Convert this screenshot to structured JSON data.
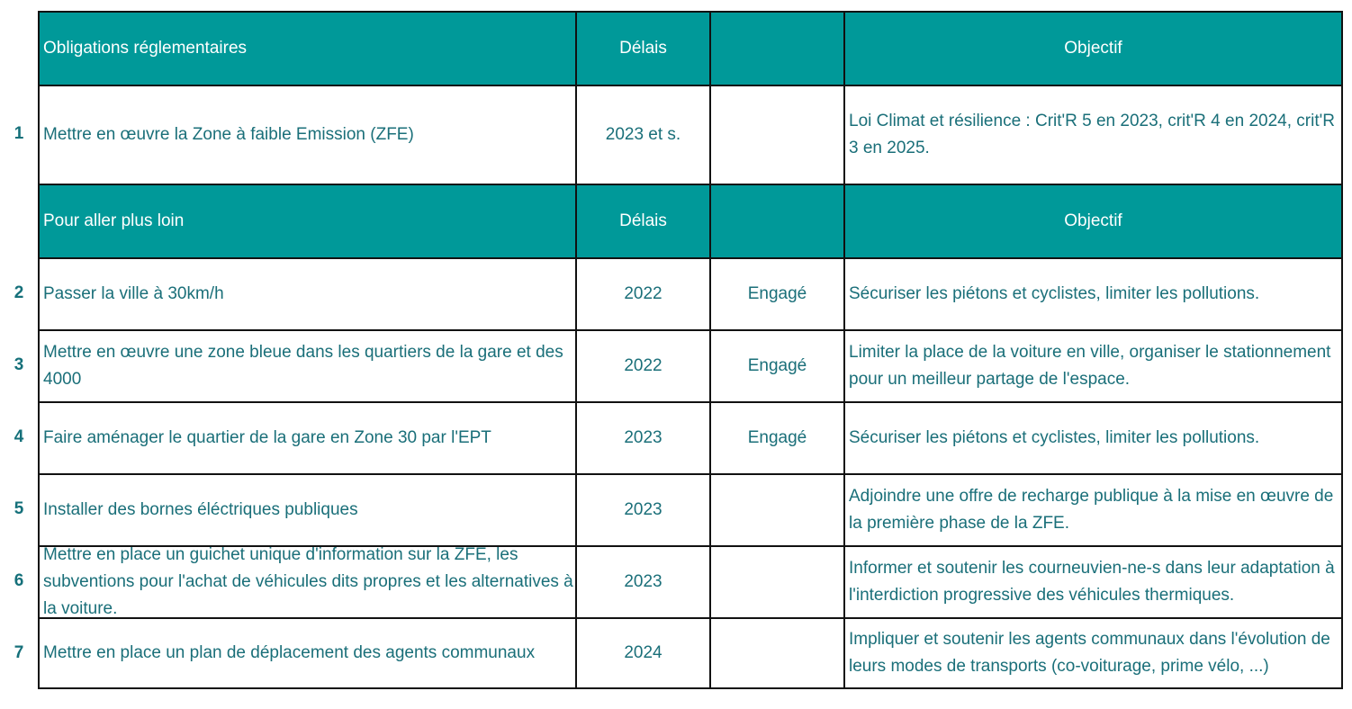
{
  "header1": {
    "title": "Obligations réglementaires",
    "delais": "Délais",
    "status": "",
    "objectif": "Objectif"
  },
  "header2": {
    "title": "Pour aller plus loin",
    "delais": "Délais",
    "status": "",
    "objectif": "Objectif"
  },
  "rows": [
    {
      "num": "1",
      "action": "Mettre en œuvre la Zone à faible Emission (ZFE)",
      "delai": "2023 et s.",
      "status": "",
      "objectif": "Loi Climat et résilience : Crit'R 5 en 2023, crit'R 4 en 2024, crit'R 3 en 2025."
    },
    {
      "num": "2",
      "action": "Passer la ville à 30km/h",
      "delai": "2022",
      "status": "Engagé",
      "objectif": "Sécuriser les piétons et cyclistes, limiter les pollutions."
    },
    {
      "num": "3",
      "action": "Mettre en œuvre une zone bleue dans les quartiers de la gare et des 4000",
      "delai": "2022",
      "status": "Engagé",
      "objectif": "Limiter la place de la voiture en ville, organiser le stationnement pour un meilleur partage de l'espace."
    },
    {
      "num": "4",
      "action": "Faire aménager le quartier de la gare en Zone 30 par l'EPT",
      "delai": "2023",
      "status": "Engagé",
      "objectif": "Sécuriser les piétons et cyclistes, limiter les pollutions."
    },
    {
      "num": "5",
      "action": "Installer des bornes éléctriques publiques",
      "delai": "2023",
      "status": "",
      "objectif": "Adjoindre une offre de recharge publique à la mise en œuvre de la première phase de la ZFE."
    },
    {
      "num": "6",
      "action": "Mettre en place un guichet unique d'information sur la ZFE, les subventions pour l'achat de véhicules dits propres et les alternatives à la voiture.",
      "delai": "2023",
      "status": "",
      "objectif": "Informer et soutenir les courneuvien-ne-s dans leur adaptation à l'interdiction progressive des véhicules thermiques."
    },
    {
      "num": "7",
      "action": "Mettre en place un plan de déplacement des agents communaux",
      "delai": "2024",
      "status": "",
      "objectif": "Impliquer et soutenir les agents communaux dans l'évolution de leurs modes de transports (co-voiturage, prime vélo, ...)"
    }
  ],
  "colors": {
    "header_bg": "#009999",
    "header_text": "#ffffff",
    "body_text": "#1a6f79",
    "border": "#111111"
  }
}
